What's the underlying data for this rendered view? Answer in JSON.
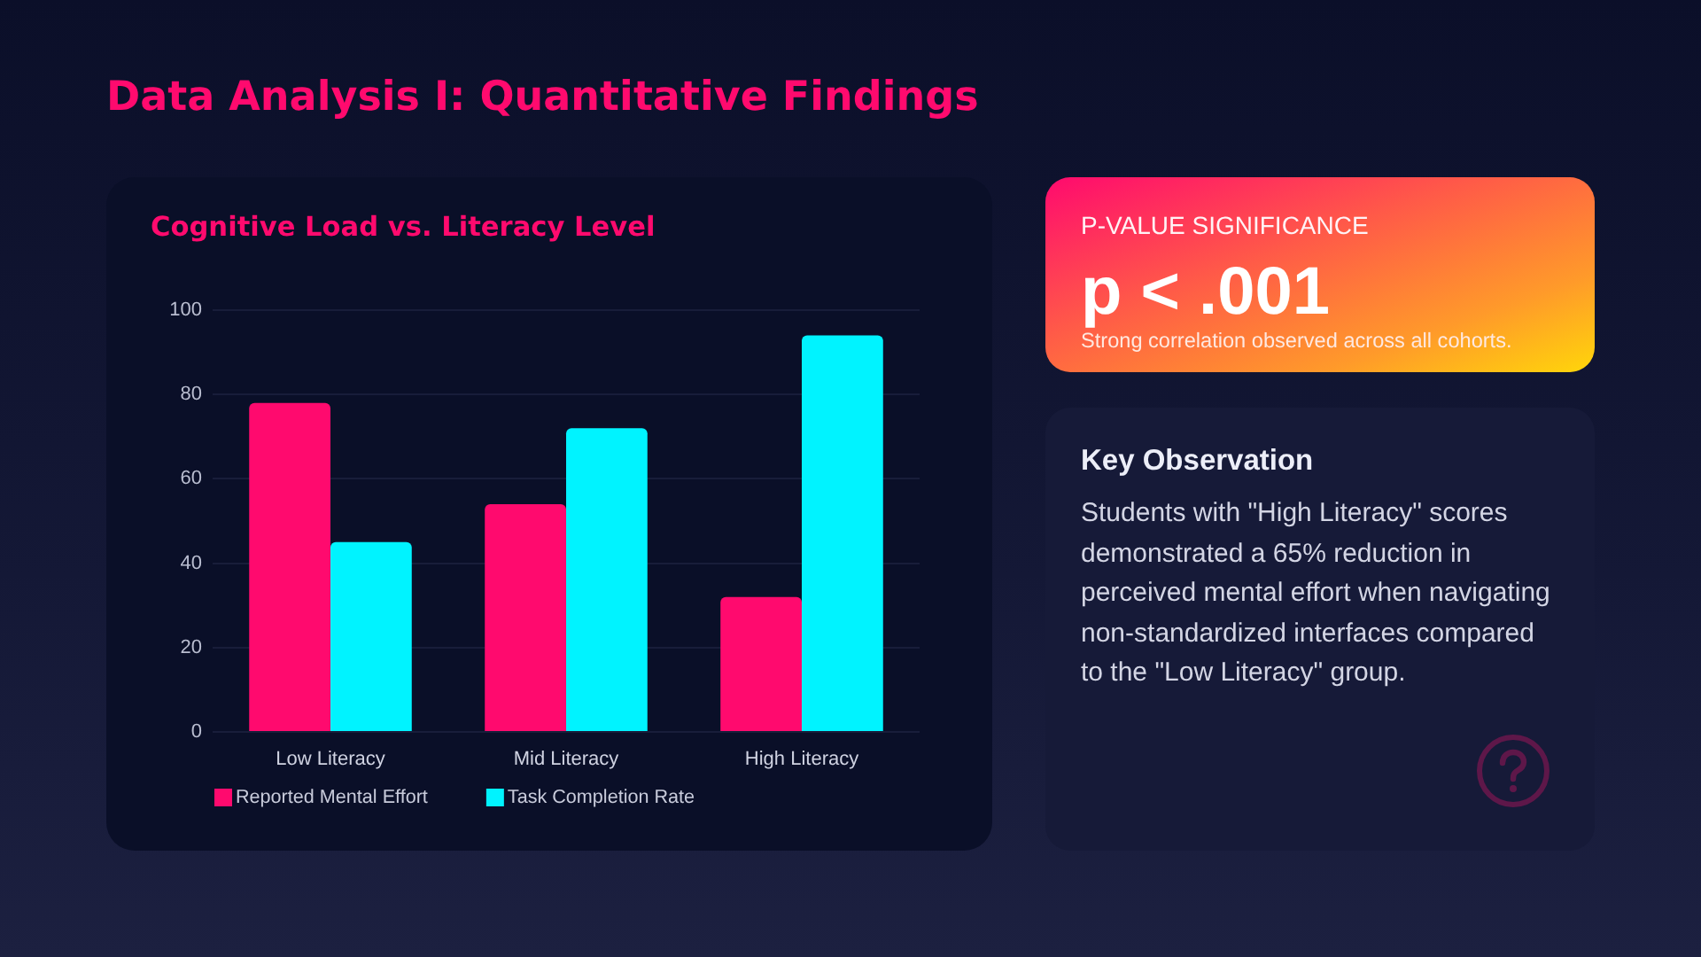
{
  "chart_data": {
    "type": "bar",
    "title": "Cognitive Load vs. Literacy Level",
    "categories": [
      "Low Literacy",
      "Mid Literacy",
      "High Literacy"
    ],
    "series": [
      {
        "name": "Reported Mental Effort",
        "color": "#ff0a6e",
        "values": [
          78,
          54,
          32
        ]
      },
      {
        "name": "Task Completion Rate",
        "color": "#00f3ff",
        "values": [
          45,
          72,
          94
        ]
      }
    ],
    "ylim": [
      0,
      100
    ],
    "yticks": [
      0,
      20,
      40,
      60,
      80,
      100
    ],
    "grid": "y",
    "legend": "bottom left",
    "annotations": [
      "Data Analysis I: Quantitative Findings",
      "P-VALUE SIGNIFICANCE",
      "p < .001",
      "Strong correlation observed across all cohorts.",
      "Key Observation",
      "Students with \"High Literacy\" scores demonstrated a 65% reduction in perceived mental effort when navigating non-standardized interfaces compared to the \"Low Literacy\" group."
    ]
  }
}
